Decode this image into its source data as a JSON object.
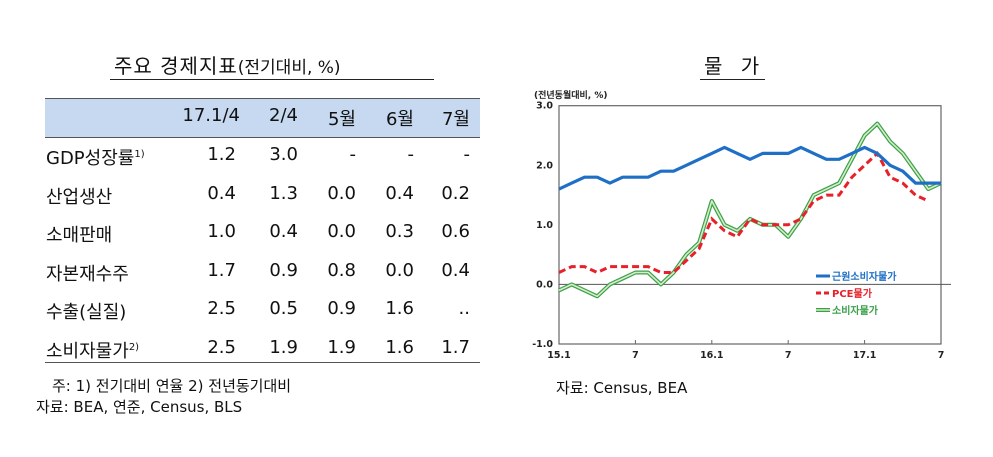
{
  "table": {
    "title": "주요 경제지표",
    "title_unit": "(전기대비, %)",
    "columns": [
      "17.1/4",
      "2/4",
      "5월",
      "6월",
      "7월"
    ],
    "rows": [
      {
        "label": "GDP성장률",
        "sup": "1)",
        "values": [
          "1.2",
          "3.0",
          "-",
          "-",
          "-"
        ]
      },
      {
        "label": "산업생산",
        "sup": "",
        "values": [
          "0.4",
          "1.3",
          "0.0",
          "0.4",
          "0.2"
        ]
      },
      {
        "label": "소매판매",
        "sup": "",
        "values": [
          "1.0",
          "0.4",
          "0.0",
          "0.3",
          "0.6"
        ]
      },
      {
        "label": "자본재수주",
        "sup": "",
        "values": [
          "1.7",
          "0.9",
          "0.8",
          "0.0",
          "0.4"
        ]
      },
      {
        "label": "수출(실질)",
        "sup": "",
        "values": [
          "2.5",
          "0.5",
          "0.9",
          "1.6",
          ".."
        ]
      },
      {
        "label": "소비자물가",
        "sup": "2)",
        "values": [
          "2.5",
          "1.9",
          "1.9",
          "1.6",
          "1.7"
        ]
      }
    ],
    "note": "주: 1) 전기대비 연율   2) 전년동기대비",
    "source": "자료: BEA, 연준, Census, BLS"
  },
  "chart_data": {
    "type": "line",
    "title": "물 가",
    "unit_label": "(전년동월대비, %)",
    "ylim": [
      -1.0,
      3.0
    ],
    "yticks": [
      "3.0",
      "2.0",
      "1.0",
      "0.0",
      "-1.0"
    ],
    "xticks": [
      "15.1",
      "7",
      "16.1",
      "7",
      "17.1",
      "7"
    ],
    "x_months": 31,
    "legend_position": "right",
    "series": [
      {
        "name": "근원소비자물가",
        "color": "#1f6fc6",
        "style": "solid",
        "values": [
          1.6,
          1.7,
          1.8,
          1.8,
          1.7,
          1.8,
          1.8,
          1.8,
          1.9,
          1.9,
          2.0,
          2.1,
          2.2,
          2.3,
          2.2,
          2.1,
          2.2,
          2.2,
          2.2,
          2.3,
          2.2,
          2.1,
          2.1,
          2.2,
          2.3,
          2.2,
          2.0,
          1.9,
          1.7,
          1.7,
          1.7
        ]
      },
      {
        "name": "PCE물가",
        "color": "#e8202a",
        "style": "dashed",
        "values": [
          0.2,
          0.3,
          0.3,
          0.2,
          0.3,
          0.3,
          0.3,
          0.3,
          0.2,
          0.2,
          0.4,
          0.6,
          1.1,
          0.9,
          0.8,
          1.1,
          1.0,
          1.0,
          1.0,
          1.1,
          1.4,
          1.5,
          1.5,
          1.8,
          2.0,
          2.2,
          1.8,
          1.7,
          1.5,
          1.4
        ]
      },
      {
        "name": "소비자물가",
        "color": "#3aa14a",
        "style": "double",
        "values": [
          -0.1,
          0.0,
          -0.1,
          -0.2,
          0.0,
          0.1,
          0.2,
          0.2,
          0.0,
          0.2,
          0.5,
          0.7,
          1.4,
          1.0,
          0.9,
          1.1,
          1.0,
          1.0,
          0.8,
          1.1,
          1.5,
          1.6,
          1.7,
          2.1,
          2.5,
          2.7,
          2.4,
          2.2,
          1.9,
          1.6,
          1.7
        ]
      }
    ],
    "source": "자료: Census, BEA"
  }
}
